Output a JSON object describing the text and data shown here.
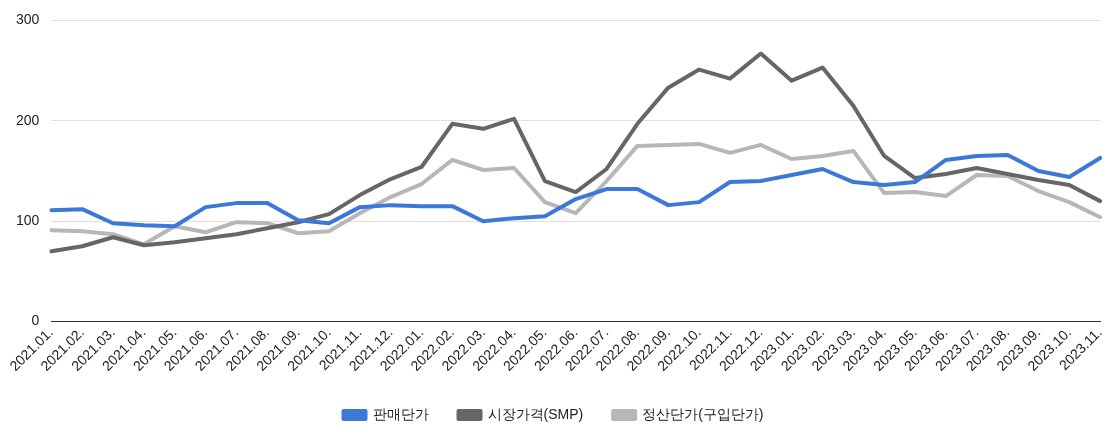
{
  "chart_data": {
    "type": "line",
    "categories": [
      "2021.01.",
      "2021.02.",
      "2021.03.",
      "2021.04.",
      "2021.05.",
      "2021.06.",
      "2021.07.",
      "2021.08.",
      "2021.09.",
      "2021.10.",
      "2021.11.",
      "2021.12.",
      "2022.01.",
      "2022.02.",
      "2022.03.",
      "2022.04.",
      "2022.05.",
      "2022.06.",
      "2022.07.",
      "2022.08.",
      "2022.09.",
      "2022.10.",
      "2022.11.",
      "2022.12.",
      "2023.01.",
      "2023.02.",
      "2023.03.",
      "2023.04.",
      "2023.05.",
      "2023.06.",
      "2023.07.",
      "2023.08.",
      "2023.09.",
      "2023.10.",
      "2023.11."
    ],
    "series": [
      {
        "name": "판매단가",
        "color": "#3c78d8",
        "values": [
          111,
          112,
          98,
          96,
          95,
          114,
          118,
          118,
          101,
          98,
          114,
          116,
          115,
          115,
          100,
          103,
          105,
          122,
          132,
          132,
          116,
          119,
          139,
          140,
          146,
          152,
          139,
          136,
          139,
          161,
          165,
          166,
          150,
          144,
          163
        ]
      },
      {
        "name": "시장가격(SMP)",
        "color": "#666666",
        "values": [
          70,
          75,
          84,
          76,
          79,
          83,
          87,
          93,
          99,
          107,
          126,
          142,
          154,
          197,
          192,
          202,
          140,
          129,
          152,
          197,
          233,
          251,
          242,
          267,
          240,
          253,
          215,
          165,
          143,
          147,
          153,
          147,
          141,
          136,
          120
        ]
      },
      {
        "name": "정산단가(구입단가)",
        "color": "#b7b7b7",
        "values": [
          91,
          90,
          87,
          77,
          95,
          89,
          99,
          98,
          88,
          90,
          108,
          124,
          137,
          161,
          151,
          153,
          119,
          108,
          140,
          175,
          176,
          177,
          168,
          176,
          162,
          165,
          170,
          128,
          129,
          125,
          146,
          145,
          130,
          119,
          104
        ]
      }
    ],
    "ylim": [
      0,
      300
    ],
    "yticks": [
      0,
      100,
      200,
      300
    ],
    "grid": "y",
    "legend": "bottom",
    "marker": "none",
    "line_style": "solid"
  }
}
